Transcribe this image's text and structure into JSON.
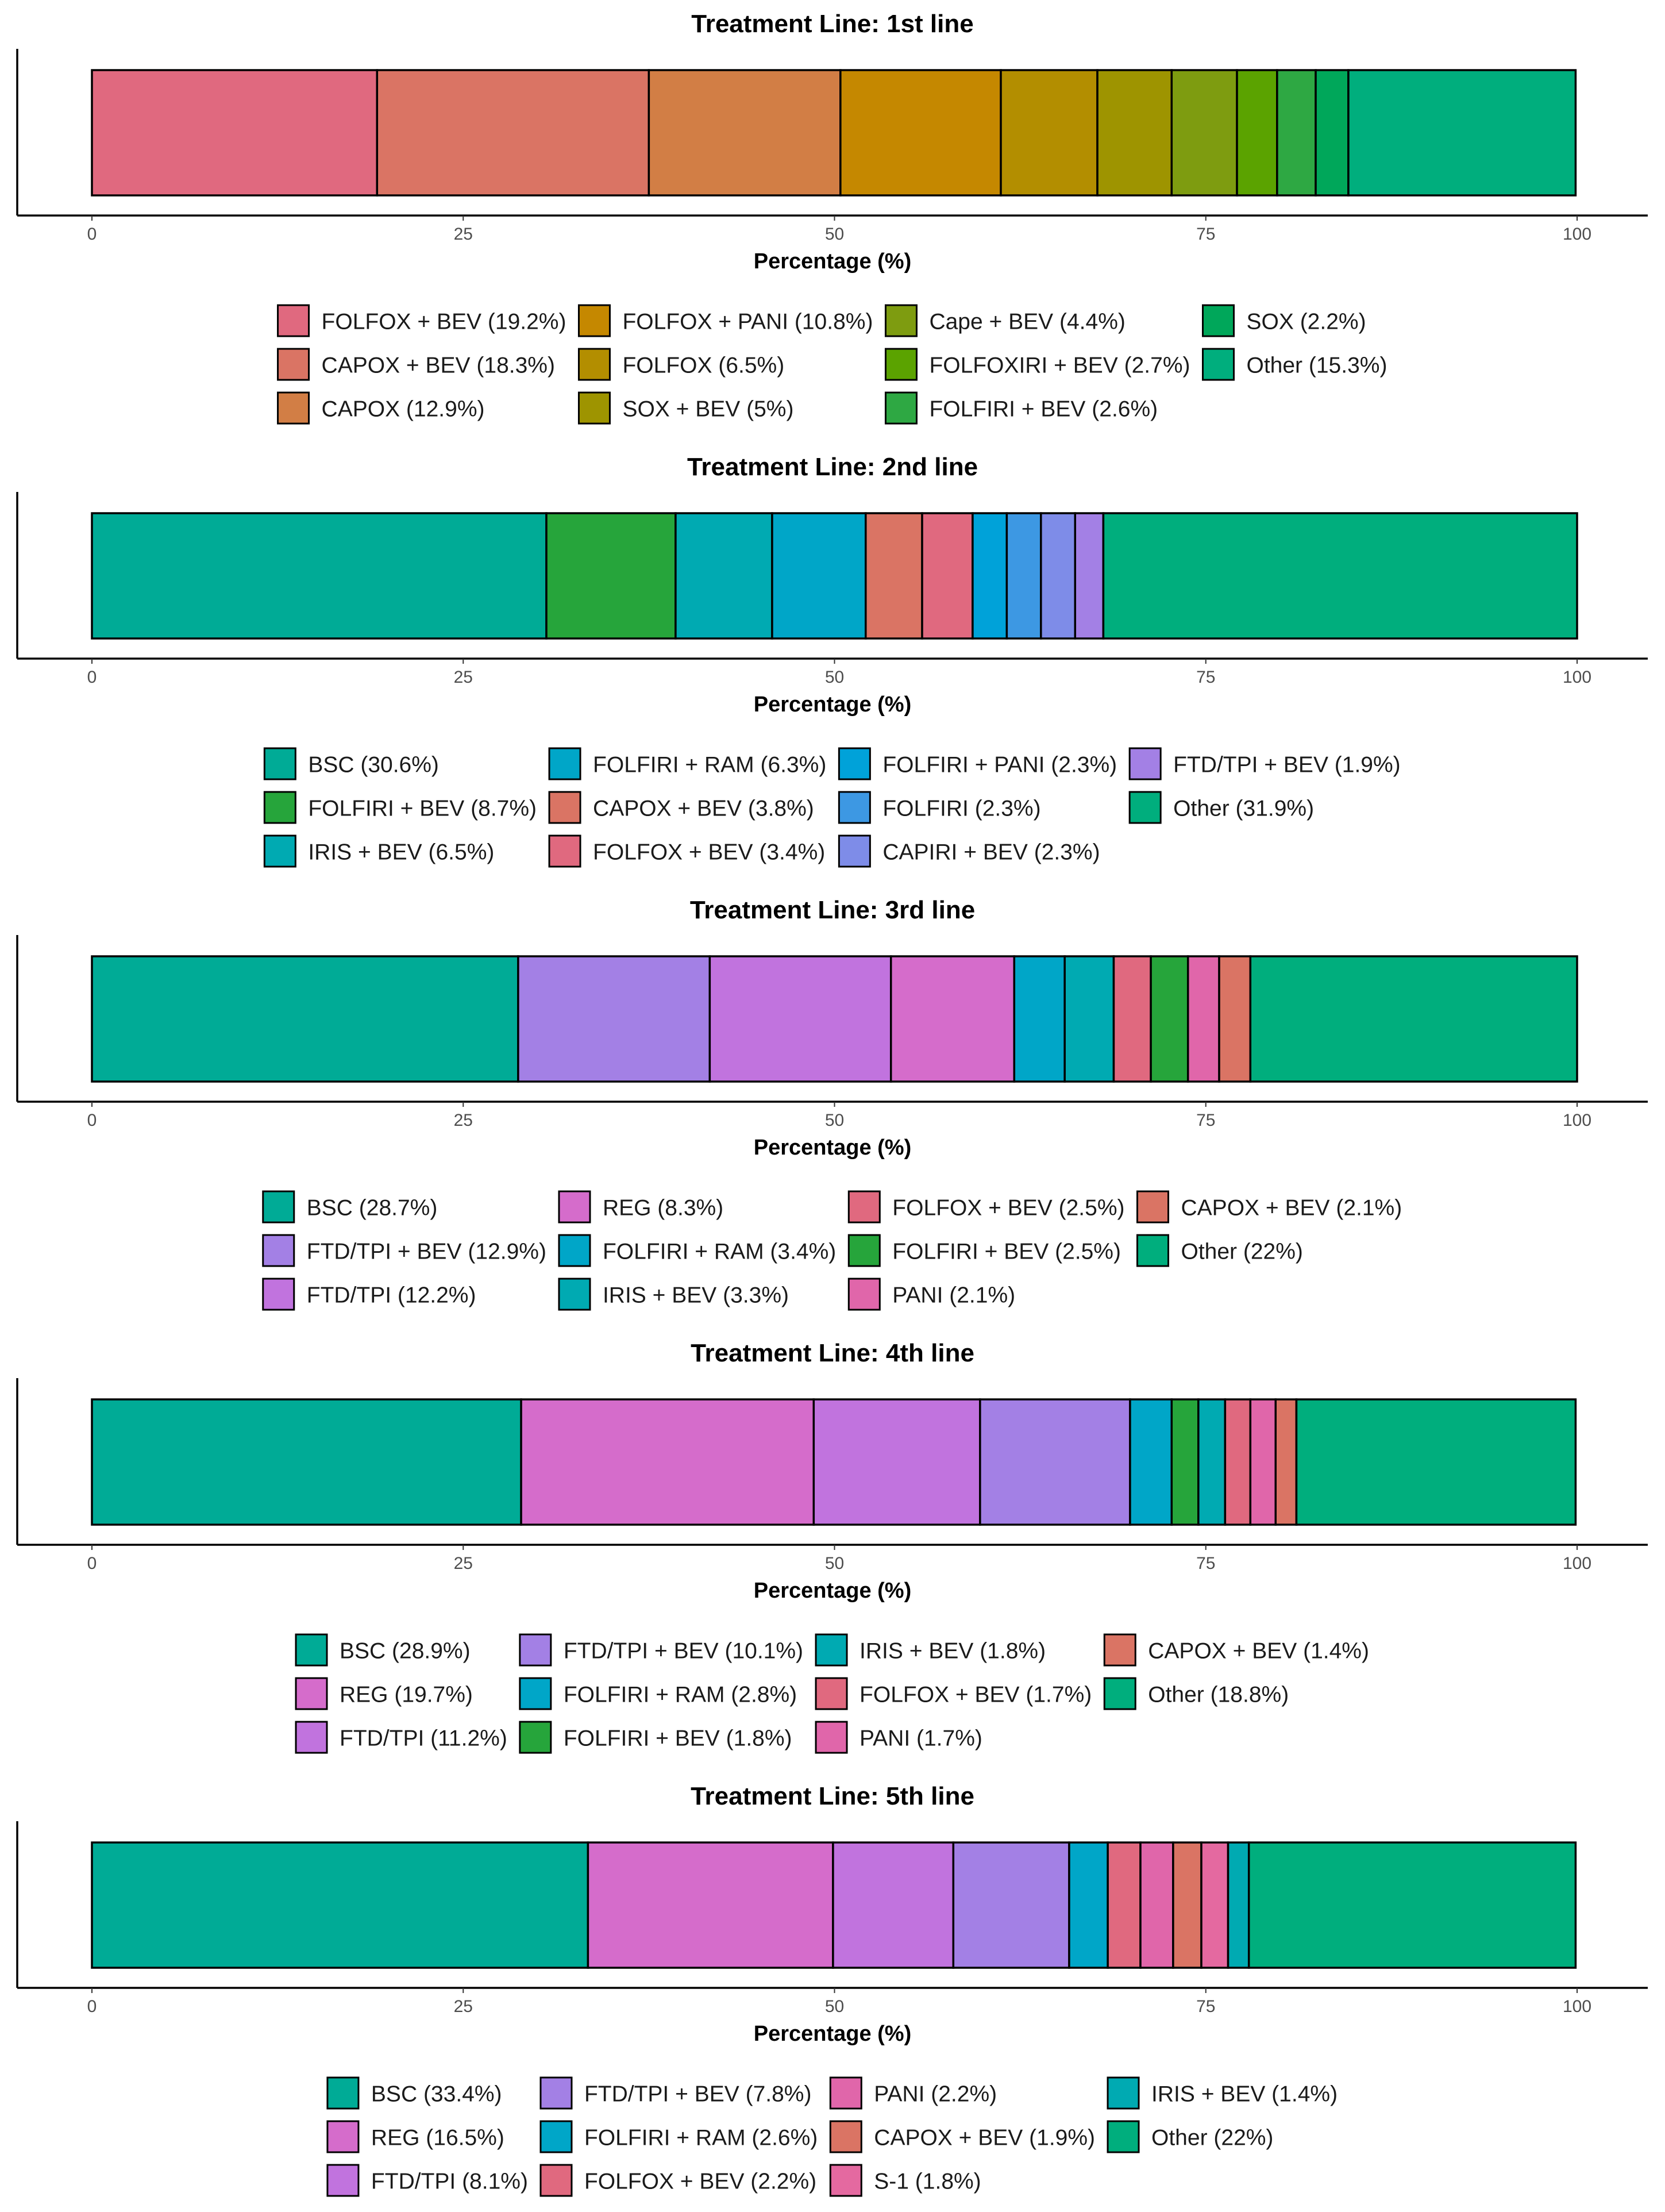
{
  "chart_data": [
    {
      "type": "bar",
      "orientation": "horizontal-stacked",
      "title": "Treatment Line: 1st line",
      "xlabel": "Percentage (%)",
      "xlim": [
        0,
        100
      ],
      "xticks": [
        0,
        25,
        50,
        75,
        100
      ],
      "xtick_labels": [
        "0",
        "25",
        "50",
        "75",
        "100"
      ],
      "series": [
        {
          "name": "FOLFOX + BEV",
          "value": 19.2,
          "color": "#E0697F",
          "label": "FOLFOX + BEV (19.2%)"
        },
        {
          "name": "CAPOX + BEV",
          "value": 18.3,
          "color": "#DA7464",
          "label": "CAPOX + BEV (18.3%)"
        },
        {
          "name": "CAPOX",
          "value": 12.9,
          "color": "#D27E45",
          "label": "CAPOX (12.9%)"
        },
        {
          "name": "FOLFOX + PANI",
          "value": 10.8,
          "color": "#C58800",
          "label": "FOLFOX + PANI (10.8%)"
        },
        {
          "name": "FOLFOX",
          "value": 6.5,
          "color": "#B38E00",
          "label": "FOLFOX (6.5%)"
        },
        {
          "name": "SOX + BEV",
          "value": 5,
          "color": "#9E9400",
          "label": "SOX + BEV (5%)"
        },
        {
          "name": "Cape + BEV",
          "value": 4.4,
          "color": "#7E9C10",
          "label": "Cape + BEV (4.4%)"
        },
        {
          "name": "FOLFOXIRI + BEV",
          "value": 2.7,
          "color": "#5BA300",
          "label": "FOLFOXIRI + BEV (2.7%)"
        },
        {
          "name": "FOLFIRI + BEV",
          "value": 2.6,
          "color": "#2EA843",
          "label": "FOLFIRI + BEV (2.6%)"
        },
        {
          "name": "SOX",
          "value": 2.2,
          "color": "#00A75A",
          "label": "SOX (2.2%)"
        },
        {
          "name": "Other",
          "value": 15.3,
          "color": "#00AE7D",
          "label": "Other (15.3%)"
        }
      ],
      "legend_columns": [
        [
          0,
          1,
          2
        ],
        [
          3,
          4,
          5
        ],
        [
          6,
          7,
          8
        ],
        [
          9,
          10
        ]
      ]
    },
    {
      "type": "bar",
      "orientation": "horizontal-stacked",
      "title": "Treatment Line: 2nd line",
      "xlabel": "Percentage (%)",
      "xlim": [
        0,
        100
      ],
      "xticks": [
        0,
        25,
        50,
        75,
        100
      ],
      "xtick_labels": [
        "0",
        "25",
        "50",
        "75",
        "100"
      ],
      "series": [
        {
          "name": "BSC",
          "value": 30.6,
          "color": "#00AB96",
          "label": "BSC (30.6%)"
        },
        {
          "name": "FOLFIRI + BEV",
          "value": 8.7,
          "color": "#26A53B",
          "label": "FOLFIRI + BEV (8.7%)"
        },
        {
          "name": "IRIS + BEV",
          "value": 6.5,
          "color": "#00AAB2",
          "label": "IRIS + BEV (6.5%)"
        },
        {
          "name": "FOLFIRI + RAM",
          "value": 6.3,
          "color": "#00A6C8",
          "label": "FOLFIRI + RAM (6.3%)"
        },
        {
          "name": "CAPOX + BEV",
          "value": 3.8,
          "color": "#DA7464",
          "label": "CAPOX + BEV (3.8%)"
        },
        {
          "name": "FOLFOX + BEV",
          "value": 3.4,
          "color": "#E0697F",
          "label": "FOLFOX + BEV (3.4%)"
        },
        {
          "name": "FOLFIRI + PANI",
          "value": 2.3,
          "color": "#00A2D9",
          "label": "FOLFIRI + PANI (2.3%)"
        },
        {
          "name": "FOLFIRI",
          "value": 2.3,
          "color": "#3D98E3",
          "label": "FOLFIRI (2.3%)"
        },
        {
          "name": "CAPIRI + BEV",
          "value": 2.3,
          "color": "#7E8CE8",
          "label": "CAPIRI + BEV (2.3%)"
        },
        {
          "name": "FTD/TPI + BEV",
          "value": 1.9,
          "color": "#A380E5",
          "label": "FTD/TPI + BEV (1.9%)"
        },
        {
          "name": "Other",
          "value": 31.9,
          "color": "#00AE7D",
          "label": "Other (31.9%)"
        }
      ],
      "legend_columns": [
        [
          0,
          1,
          2
        ],
        [
          3,
          4,
          5
        ],
        [
          6,
          7,
          8
        ],
        [
          9,
          10
        ]
      ]
    },
    {
      "type": "bar",
      "orientation": "horizontal-stacked",
      "title": "Treatment Line: 3rd line",
      "xlabel": "Percentage (%)",
      "xlim": [
        0,
        100
      ],
      "xticks": [
        0,
        25,
        50,
        75,
        100
      ],
      "xtick_labels": [
        "0",
        "25",
        "50",
        "75",
        "100"
      ],
      "series": [
        {
          "name": "BSC",
          "value": 28.7,
          "color": "#00AB96",
          "label": "BSC (28.7%)"
        },
        {
          "name": "FTD/TPI + BEV",
          "value": 12.9,
          "color": "#A380E5",
          "label": "FTD/TPI + BEV (12.9%)"
        },
        {
          "name": "FTD/TPI",
          "value": 12.2,
          "color": "#C173DE",
          "label": "FTD/TPI (12.2%)"
        },
        {
          "name": "REG",
          "value": 8.3,
          "color": "#D56CCB",
          "label": "REG (8.3%)"
        },
        {
          "name": "FOLFIRI + RAM",
          "value": 3.4,
          "color": "#00A6C8",
          "label": "FOLFIRI + RAM (3.4%)"
        },
        {
          "name": "IRIS + BEV",
          "value": 3.3,
          "color": "#00AAB2",
          "label": "IRIS + BEV (3.3%)"
        },
        {
          "name": "FOLFOX + BEV",
          "value": 2.5,
          "color": "#E0697F",
          "label": "FOLFOX + BEV (2.5%)"
        },
        {
          "name": "FOLFIRI + BEV",
          "value": 2.5,
          "color": "#26A53B",
          "label": "FOLFIRI + BEV (2.5%)"
        },
        {
          "name": "PANI",
          "value": 2.1,
          "color": "#E066AA",
          "label": "PANI (2.1%)"
        },
        {
          "name": "CAPOX + BEV",
          "value": 2.1,
          "color": "#DA7464",
          "label": "CAPOX + BEV (2.1%)"
        },
        {
          "name": "Other",
          "value": 22,
          "color": "#00AE7D",
          "label": "Other (22%)"
        }
      ],
      "legend_columns": [
        [
          0,
          1,
          2
        ],
        [
          3,
          4,
          5
        ],
        [
          6,
          7,
          8
        ],
        [
          9,
          10
        ]
      ]
    },
    {
      "type": "bar",
      "orientation": "horizontal-stacked",
      "title": "Treatment Line: 4th line",
      "xlabel": "Percentage (%)",
      "xlim": [
        0,
        100
      ],
      "xticks": [
        0,
        25,
        50,
        75,
        100
      ],
      "xtick_labels": [
        "0",
        "25",
        "50",
        "75",
        "100"
      ],
      "series": [
        {
          "name": "BSC",
          "value": 28.9,
          "color": "#00AB96",
          "label": "BSC (28.9%)"
        },
        {
          "name": "REG",
          "value": 19.7,
          "color": "#D56CCB",
          "label": "REG (19.7%)"
        },
        {
          "name": "FTD/TPI",
          "value": 11.2,
          "color": "#C173DE",
          "label": "FTD/TPI (11.2%)"
        },
        {
          "name": "FTD/TPI + BEV",
          "value": 10.1,
          "color": "#A380E5",
          "label": "FTD/TPI + BEV (10.1%)"
        },
        {
          "name": "FOLFIRI + RAM",
          "value": 2.8,
          "color": "#00A6C8",
          "label": "FOLFIRI + RAM (2.8%)"
        },
        {
          "name": "FOLFIRI + BEV",
          "value": 1.8,
          "color": "#26A53B",
          "label": "FOLFIRI + BEV (1.8%)"
        },
        {
          "name": "IRIS + BEV",
          "value": 1.8,
          "color": "#00AAB2",
          "label": "IRIS + BEV (1.8%)"
        },
        {
          "name": "FOLFOX + BEV",
          "value": 1.7,
          "color": "#E0697F",
          "label": "FOLFOX + BEV (1.7%)"
        },
        {
          "name": "PANI",
          "value": 1.7,
          "color": "#E066AA",
          "label": "PANI (1.7%)"
        },
        {
          "name": "CAPOX + BEV",
          "value": 1.4,
          "color": "#DA7464",
          "label": "CAPOX + BEV (1.4%)"
        },
        {
          "name": "Other",
          "value": 18.8,
          "color": "#00AE7D",
          "label": "Other (18.8%)"
        }
      ],
      "legend_columns": [
        [
          0,
          1,
          2
        ],
        [
          3,
          4,
          5
        ],
        [
          6,
          7,
          8
        ],
        [
          9,
          10
        ]
      ]
    },
    {
      "type": "bar",
      "orientation": "horizontal-stacked",
      "title": "Treatment Line: 5th line",
      "xlabel": "Percentage (%)",
      "xlim": [
        0,
        100
      ],
      "xticks": [
        0,
        25,
        50,
        75,
        100
      ],
      "xtick_labels": [
        "0",
        "25",
        "50",
        "75",
        "100"
      ],
      "series": [
        {
          "name": "BSC",
          "value": 33.4,
          "color": "#00AB96",
          "label": "BSC (33.4%)"
        },
        {
          "name": "REG",
          "value": 16.5,
          "color": "#D56CCB",
          "label": "REG (16.5%)"
        },
        {
          "name": "FTD/TPI",
          "value": 8.1,
          "color": "#C173DE",
          "label": "FTD/TPI (8.1%)"
        },
        {
          "name": "FTD/TPI + BEV",
          "value": 7.8,
          "color": "#A380E5",
          "label": "FTD/TPI + BEV (7.8%)"
        },
        {
          "name": "FOLFIRI + RAM",
          "value": 2.6,
          "color": "#00A6C8",
          "label": "FOLFIRI + RAM (2.6%)"
        },
        {
          "name": "FOLFOX + BEV",
          "value": 2.2,
          "color": "#E0697F",
          "label": "FOLFOX + BEV (2.2%)"
        },
        {
          "name": "PANI",
          "value": 2.2,
          "color": "#E066AA",
          "label": "PANI (2.2%)"
        },
        {
          "name": "CAPOX + BEV",
          "value": 1.9,
          "color": "#DA7464",
          "label": "CAPOX + BEV (1.9%)"
        },
        {
          "name": "S-1",
          "value": 1.8,
          "color": "#E469A0",
          "label": "S-1 (1.8%)"
        },
        {
          "name": "IRIS + BEV",
          "value": 1.4,
          "color": "#00AAB2",
          "label": "IRIS + BEV (1.4%)"
        },
        {
          "name": "Other",
          "value": 22,
          "color": "#00AE7D",
          "label": "Other (22%)"
        }
      ],
      "legend_columns": [
        [
          0,
          1,
          2
        ],
        [
          3,
          4,
          5
        ],
        [
          6,
          7,
          8
        ],
        [
          9,
          10
        ]
      ]
    }
  ]
}
